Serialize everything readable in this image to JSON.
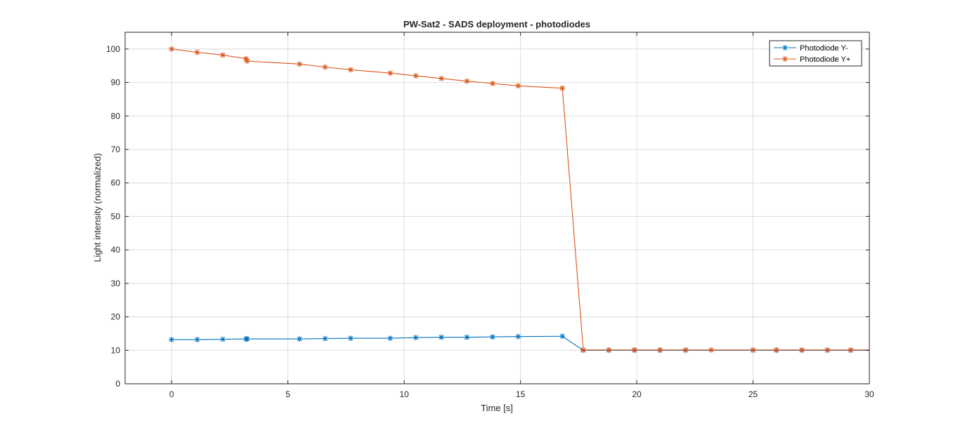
{
  "chart_data": {
    "type": "line",
    "title": "PW-Sat2 - SADS deployment - photodiodes",
    "xlabel": "Time [s]",
    "ylabel": "Light intensity (normalized)",
    "xlim": [
      -2,
      30
    ],
    "ylim": [
      0,
      105
    ],
    "xticks": [
      0,
      5,
      10,
      15,
      20,
      25,
      30
    ],
    "yticks": [
      0,
      10,
      20,
      30,
      40,
      50,
      60,
      70,
      80,
      90,
      100
    ],
    "grid": true,
    "legend_position": "top-right",
    "marker": "asterisk",
    "series": [
      {
        "name": "Photodiode Y-",
        "color": "#0072BD",
        "x": [
          0,
          1.1,
          2.2,
          3.2,
          3.25,
          5.5,
          6.6,
          7.7,
          9.4,
          10.5,
          11.6,
          12.7,
          13.8,
          14.9,
          16.8,
          17.7,
          18.8,
          19.9,
          21.0,
          22.1,
          25.0,
          26.0,
          27.1,
          28.2,
          29.2,
          30.0
        ],
        "y": [
          13.2,
          13.2,
          13.3,
          13.4,
          13.4,
          13.4,
          13.5,
          13.6,
          13.6,
          13.8,
          13.9,
          13.9,
          14.0,
          14.1,
          14.2,
          10.0,
          10.0,
          10.0,
          10.0,
          10.0,
          10.0,
          10.0,
          10.0,
          10.0,
          10.0,
          10.0
        ],
        "markers": [
          true,
          true,
          true,
          true,
          true,
          true,
          true,
          true,
          true,
          true,
          true,
          true,
          true,
          true,
          true,
          true,
          true,
          true,
          true,
          true,
          true,
          true,
          true,
          true,
          true,
          false
        ]
      },
      {
        "name": "Photodiode Y+",
        "color": "#D95319",
        "x": [
          0,
          1.1,
          2.2,
          3.2,
          3.25,
          5.5,
          6.6,
          7.7,
          9.4,
          10.5,
          11.6,
          12.7,
          13.8,
          14.9,
          16.8,
          17.7,
          18.8,
          19.9,
          21.0,
          22.1,
          23.2,
          25.0,
          26.0,
          27.1,
          28.2,
          29.2,
          30.0
        ],
        "y": [
          100.0,
          99.0,
          98.2,
          97.1,
          96.4,
          95.5,
          94.6,
          93.8,
          92.8,
          92.0,
          91.2,
          90.4,
          89.7,
          89.0,
          88.3,
          10.1,
          10.1,
          10.1,
          10.1,
          10.1,
          10.1,
          10.1,
          10.1,
          10.1,
          10.1,
          10.1,
          10.1
        ],
        "markers": [
          true,
          true,
          true,
          true,
          true,
          true,
          true,
          true,
          true,
          true,
          true,
          true,
          true,
          true,
          true,
          true,
          true,
          true,
          true,
          true,
          true,
          true,
          true,
          true,
          true,
          true,
          false
        ]
      }
    ]
  }
}
